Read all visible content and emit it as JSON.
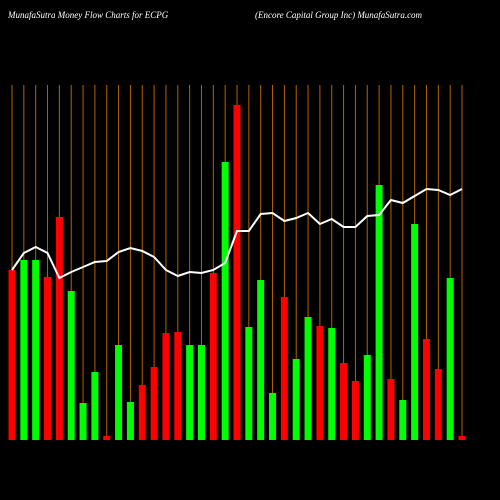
{
  "chart_data": {
    "type": "bar",
    "title": "MunafaSutra  Money Flow  Charts for ECPG",
    "subtitle": "(Encore    Capital Group Inc) MunafaSutra.com",
    "ylim": [
      0,
      355
    ],
    "grid": true,
    "grid_color": "#b36200",
    "bars": {
      "values": [
        170,
        180,
        180,
        163,
        223,
        149,
        37,
        68,
        4,
        95,
        38,
        55,
        73,
        107,
        108,
        95,
        95,
        167,
        278,
        335,
        113,
        160,
        47,
        143,
        81,
        123,
        114,
        112,
        77,
        59,
        85,
        255,
        61,
        40,
        216,
        101,
        71,
        162,
        4
      ],
      "colors": [
        "#ff0000",
        "#00ff00",
        "#00ff00",
        "#ff0000",
        "#ff0000",
        "#00ff00",
        "#00ff00",
        "#00ff00",
        "#ff0000",
        "#00ff00",
        "#00ff00",
        "#ff0000",
        "#ff0000",
        "#ff0000",
        "#ff0000",
        "#00ff00",
        "#00ff00",
        "#ff0000",
        "#00ff00",
        "#ff0000",
        "#00ff00",
        "#00ff00",
        "#00ff00",
        "#ff0000",
        "#00ff00",
        "#00ff00",
        "#ff0000",
        "#00ff00",
        "#ff0000",
        "#ff0000",
        "#00ff00",
        "#00ff00",
        "#ff0000",
        "#00ff00",
        "#00ff00",
        "#ff0000",
        "#ff0000",
        "#00ff00",
        "#ff0000"
      ]
    },
    "line": {
      "color": "#ffffff",
      "values": [
        170,
        187,
        193,
        187,
        162,
        168,
        173,
        178,
        179,
        188,
        192,
        189,
        183,
        170,
        164,
        168,
        167,
        170,
        177,
        209,
        209,
        226,
        227,
        219,
        222,
        227,
        216,
        221,
        213,
        213,
        224,
        225,
        240,
        237,
        244,
        251,
        250,
        245,
        251
      ]
    }
  }
}
